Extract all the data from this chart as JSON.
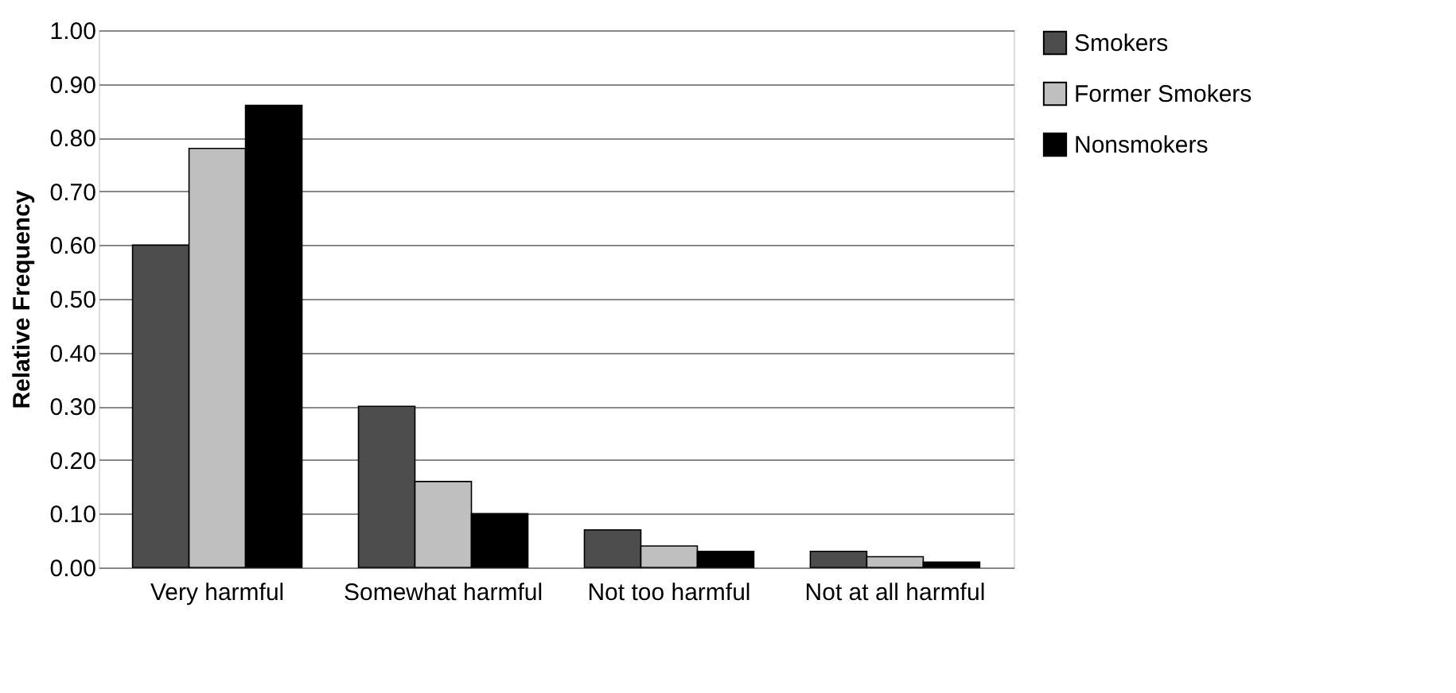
{
  "chart_data": {
    "type": "bar",
    "ylabel": "Relative Frequency",
    "categories": [
      "Very harmful",
      "Somewhat harmful",
      "Not too harmful",
      "Not at all harmful"
    ],
    "series": [
      {
        "name": "Smokers",
        "color": "#4d4d4d",
        "values": [
          0.6,
          0.3,
          0.07,
          0.03
        ]
      },
      {
        "name": "Former Smokers",
        "color": "#bfbfbf",
        "values": [
          0.78,
          0.16,
          0.04,
          0.02
        ]
      },
      {
        "name": "Nonsmokers",
        "color": "#000000",
        "values": [
          0.86,
          0.1,
          0.03,
          0.01
        ]
      }
    ],
    "ylim": [
      0,
      1
    ],
    "yticks": [
      {
        "value": 0,
        "label": "0.00"
      },
      {
        "value": 0.1,
        "label": "0.10"
      },
      {
        "value": 0.2,
        "label": "0.20"
      },
      {
        "value": 0.3,
        "label": "0.30"
      },
      {
        "value": 0.4,
        "label": "0.40"
      },
      {
        "value": 0.5,
        "label": "0.50"
      },
      {
        "value": 0.6,
        "label": "0.60"
      },
      {
        "value": 0.7,
        "label": "0.70"
      },
      {
        "value": 0.8,
        "label": "0.80"
      },
      {
        "value": 0.9,
        "label": "0.90"
      },
      {
        "value": 1,
        "label": "1.00"
      }
    ],
    "grid": "y",
    "legend": "right"
  }
}
